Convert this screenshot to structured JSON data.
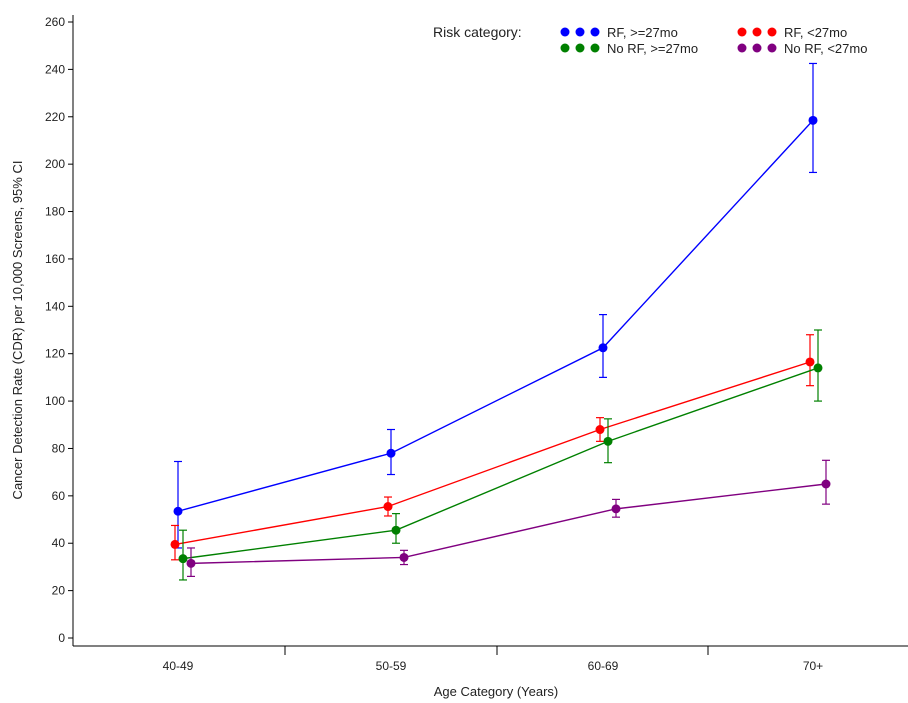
{
  "chart_data": {
    "type": "line",
    "xlabel": "Age Category (Years)",
    "ylabel": "Cancer Detection Rate (CDR) per 10,000 Screens, 95% CI",
    "categories": [
      "40-49",
      "50-59",
      "60-69",
      "70+"
    ],
    "ylim": [
      0,
      260
    ],
    "yticks": [
      0,
      20,
      40,
      60,
      80,
      100,
      120,
      140,
      160,
      180,
      200,
      220,
      240,
      260
    ],
    "legend_title": "Risk category:",
    "legend_position": "top-right",
    "grid": false,
    "series": [
      {
        "name": "RF, >=27mo",
        "color": "#0000ff",
        "values": [
          53.5,
          78,
          122.5,
          218.5
        ],
        "ci_low": [
          38,
          69,
          110,
          196.5
        ],
        "ci_high": [
          74.5,
          88,
          136.5,
          242.5
        ]
      },
      {
        "name": "RF, <27mo",
        "color": "#ff0000",
        "values": [
          39.5,
          55.5,
          88,
          116.5
        ],
        "ci_low": [
          33,
          51.5,
          83,
          106.5
        ],
        "ci_high": [
          47.5,
          59.5,
          93,
          128
        ]
      },
      {
        "name": "No RF, >=27mo",
        "color": "#008000",
        "values": [
          33.5,
          45.5,
          83,
          114
        ],
        "ci_low": [
          24.5,
          40,
          74,
          100
        ],
        "ci_high": [
          45.5,
          52.5,
          92.5,
          130
        ]
      },
      {
        "name": "No RF, <27mo",
        "color": "#800080",
        "values": [
          31.5,
          34,
          54.5,
          65
        ],
        "ci_low": [
          26,
          31,
          51,
          56.5
        ],
        "ci_high": [
          38,
          37,
          58.5,
          75
        ]
      }
    ]
  }
}
